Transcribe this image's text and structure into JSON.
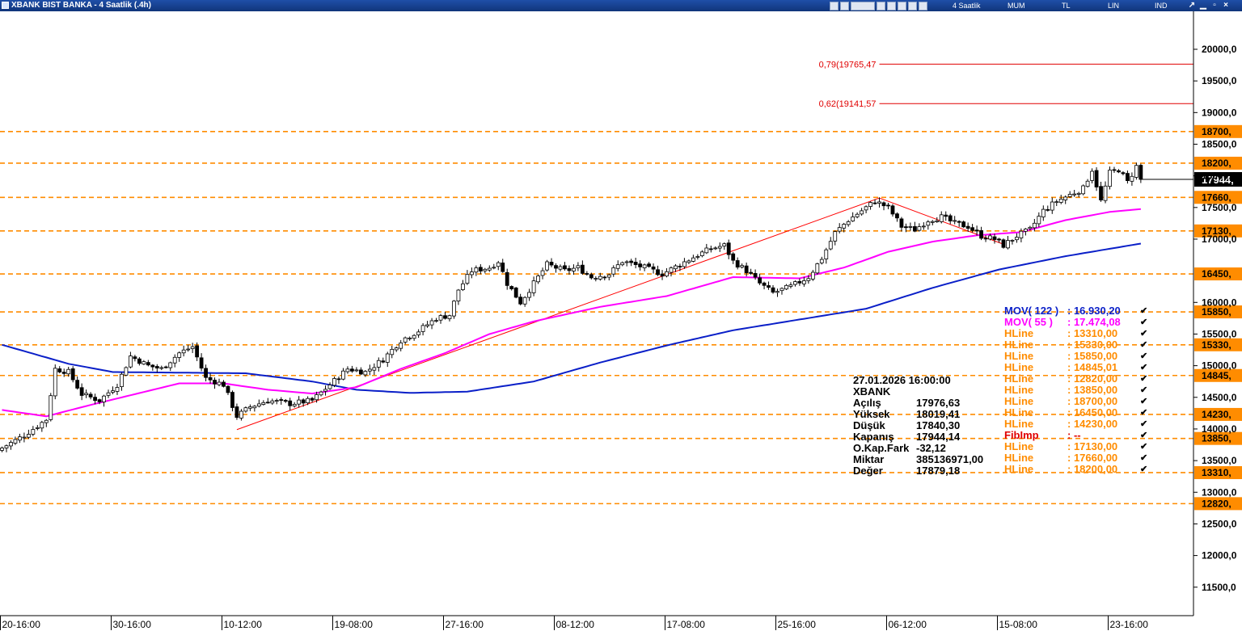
{
  "window": {
    "title": "XBANK BIST BANKA - 4 Saatlik (.4h)",
    "toolbar_labels": [
      "4 Saatlik",
      "MUM",
      "TL",
      "LIN",
      "IND"
    ]
  },
  "colors": {
    "up_candle": "#ffffff",
    "down_candle": "#000000",
    "mov122": "#0a1fc8",
    "mov55": "#ff00ff",
    "hline": "#ff8c00",
    "fib": "#e00000",
    "trend": "#ff0000"
  },
  "chart_data": {
    "type": "candlestick",
    "symbol": "XBANK",
    "ylim": [
      11050,
      20600
    ],
    "y_ticks": [
      "20000,0",
      "19500,0",
      "19000,0",
      "18500,0",
      "18000,0",
      "17500,0",
      "17000,0",
      "16000,0",
      "15500,0",
      "15000,0",
      "14500,0",
      "14000,0",
      "13500,0",
      "13000,0",
      "12500,0",
      "12000,0",
      "11500,0"
    ],
    "y_tick_values": [
      20000,
      19500,
      19000,
      18500,
      18000,
      17500,
      17000,
      16000,
      15500,
      15000,
      14500,
      14000,
      13500,
      13000,
      12500,
      12000,
      11500
    ],
    "x_ticks": [
      {
        "label": "20-16:00",
        "bar": 0
      },
      {
        "label": "30-16:00",
        "bar": 25
      },
      {
        "label": "10-12:00",
        "bar": 50
      },
      {
        "label": "19-08:00",
        "bar": 75
      },
      {
        "label": "27-16:00",
        "bar": 100
      },
      {
        "label": "08-12:00",
        "bar": 125
      },
      {
        "label": "17-08:00",
        "bar": 150
      },
      {
        "label": "25-16:00",
        "bar": 175
      },
      {
        "label": "06-12:00",
        "bar": 200
      },
      {
        "label": "15-08:00",
        "bar": 225
      },
      {
        "label": "23-16:00",
        "bar": 250
      }
    ],
    "bar_count": 258,
    "hlines": [
      {
        "value": 18700,
        "label": "18700,"
      },
      {
        "value": 18200,
        "label": "18200,"
      },
      {
        "value": 17660,
        "label": "17660,"
      },
      {
        "value": 17130,
        "label": "17130,"
      },
      {
        "value": 16450,
        "label": "16450,"
      },
      {
        "value": 15850,
        "label": "15850,"
      },
      {
        "value": 15330,
        "label": "15330,"
      },
      {
        "value": 14845,
        "label": "14845,"
      },
      {
        "value": 14230,
        "label": "14230,"
      },
      {
        "value": 13850,
        "label": "13850,"
      },
      {
        "value": 13310,
        "label": "13310,"
      },
      {
        "value": 12820,
        "label": "12820,"
      }
    ],
    "fib_levels": [
      {
        "value": 19765.47,
        "label": "0,79(19765,47",
        "start_bar": 198
      },
      {
        "value": 19141.57,
        "label": "0,62(19141,57",
        "start_bar": 198
      }
    ],
    "trend_lines": [
      {
        "from_bar": 53,
        "from_value": 13990,
        "to_bar": 198,
        "to_value": 17650
      },
      {
        "from_bar": 198,
        "from_value": 17650,
        "to_bar": 226,
        "to_value": 16920
      }
    ],
    "last_price": {
      "value": 17944.14,
      "label": "17944,"
    },
    "anchors": [
      {
        "bar": 0,
        "value": 13700
      },
      {
        "bar": 5,
        "value": 13900
      },
      {
        "bar": 10,
        "value": 14150
      },
      {
        "bar": 12,
        "value": 14950
      },
      {
        "bar": 15,
        "value": 14900
      },
      {
        "bar": 18,
        "value": 14550
      },
      {
        "bar": 22,
        "value": 14450
      },
      {
        "bar": 26,
        "value": 14700
      },
      {
        "bar": 29,
        "value": 15150
      },
      {
        "bar": 33,
        "value": 15000
      },
      {
        "bar": 36,
        "value": 14950
      },
      {
        "bar": 40,
        "value": 15200
      },
      {
        "bar": 43,
        "value": 15300
      },
      {
        "bar": 46,
        "value": 14800
      },
      {
        "bar": 50,
        "value": 14700
      },
      {
        "bar": 53,
        "value": 14200
      },
      {
        "bar": 56,
        "value": 14350
      },
      {
        "bar": 60,
        "value": 14450
      },
      {
        "bar": 65,
        "value": 14400
      },
      {
        "bar": 70,
        "value": 14450
      },
      {
        "bar": 74,
        "value": 14700
      },
      {
        "bar": 78,
        "value": 14950
      },
      {
        "bar": 82,
        "value": 14900
      },
      {
        "bar": 86,
        "value": 15100
      },
      {
        "bar": 90,
        "value": 15400
      },
      {
        "bar": 94,
        "value": 15550
      },
      {
        "bar": 98,
        "value": 15750
      },
      {
        "bar": 101,
        "value": 15800
      },
      {
        "bar": 103,
        "value": 16200
      },
      {
        "bar": 106,
        "value": 16500
      },
      {
        "bar": 110,
        "value": 16550
      },
      {
        "bar": 112,
        "value": 16650
      },
      {
        "bar": 114,
        "value": 16300
      },
      {
        "bar": 117,
        "value": 16000
      },
      {
        "bar": 120,
        "value": 16300
      },
      {
        "bar": 123,
        "value": 16600
      },
      {
        "bar": 127,
        "value": 16500
      },
      {
        "bar": 130,
        "value": 16550
      },
      {
        "bar": 133,
        "value": 16400
      },
      {
        "bar": 137,
        "value": 16450
      },
      {
        "bar": 140,
        "value": 16650
      },
      {
        "bar": 145,
        "value": 16550
      },
      {
        "bar": 149,
        "value": 16450
      },
      {
        "bar": 153,
        "value": 16600
      },
      {
        "bar": 157,
        "value": 16750
      },
      {
        "bar": 160,
        "value": 16850
      },
      {
        "bar": 163,
        "value": 16900
      },
      {
        "bar": 165,
        "value": 16650
      },
      {
        "bar": 168,
        "value": 16500
      },
      {
        "bar": 171,
        "value": 16300
      },
      {
        "bar": 174,
        "value": 16150
      },
      {
        "bar": 178,
        "value": 16250
      },
      {
        "bar": 182,
        "value": 16400
      },
      {
        "bar": 185,
        "value": 16700
      },
      {
        "bar": 188,
        "value": 17100
      },
      {
        "bar": 191,
        "value": 17300
      },
      {
        "bar": 194,
        "value": 17450
      },
      {
        "bar": 197,
        "value": 17600
      },
      {
        "bar": 200,
        "value": 17500
      },
      {
        "bar": 203,
        "value": 17200
      },
      {
        "bar": 206,
        "value": 17150
      },
      {
        "bar": 209,
        "value": 17300
      },
      {
        "bar": 212,
        "value": 17350
      },
      {
        "bar": 215,
        "value": 17250
      },
      {
        "bar": 218,
        "value": 17200
      },
      {
        "bar": 221,
        "value": 17050
      },
      {
        "bar": 224,
        "value": 17000
      },
      {
        "bar": 226,
        "value": 16900
      },
      {
        "bar": 229,
        "value": 17050
      },
      {
        "bar": 232,
        "value": 17150
      },
      {
        "bar": 235,
        "value": 17450
      },
      {
        "bar": 238,
        "value": 17600
      },
      {
        "bar": 241,
        "value": 17700
      },
      {
        "bar": 244,
        "value": 17800
      },
      {
        "bar": 246,
        "value": 18100
      },
      {
        "bar": 248,
        "value": 17600
      },
      {
        "bar": 250,
        "value": 18050
      },
      {
        "bar": 252,
        "value": 18100
      },
      {
        "bar": 254,
        "value": 17900
      },
      {
        "bar": 256,
        "value": 18150
      },
      {
        "bar": 257,
        "value": 17944
      }
    ],
    "mov122_points": [
      {
        "bar": 0,
        "value": 15330
      },
      {
        "bar": 15,
        "value": 15030
      },
      {
        "bar": 25,
        "value": 14900
      },
      {
        "bar": 40,
        "value": 14890
      },
      {
        "bar": 55,
        "value": 14880
      },
      {
        "bar": 70,
        "value": 14750
      },
      {
        "bar": 80,
        "value": 14620
      },
      {
        "bar": 92,
        "value": 14570
      },
      {
        "bar": 105,
        "value": 14590
      },
      {
        "bar": 120,
        "value": 14750
      },
      {
        "bar": 135,
        "value": 15050
      },
      {
        "bar": 150,
        "value": 15320
      },
      {
        "bar": 165,
        "value": 15560
      },
      {
        "bar": 180,
        "value": 15730
      },
      {
        "bar": 195,
        "value": 15900
      },
      {
        "bar": 210,
        "value": 16230
      },
      {
        "bar": 225,
        "value": 16520
      },
      {
        "bar": 240,
        "value": 16730
      },
      {
        "bar": 257,
        "value": 16930
      }
    ],
    "mov55_points": [
      {
        "bar": 0,
        "value": 14300
      },
      {
        "bar": 10,
        "value": 14200
      },
      {
        "bar": 20,
        "value": 14380
      },
      {
        "bar": 30,
        "value": 14550
      },
      {
        "bar": 40,
        "value": 14720
      },
      {
        "bar": 50,
        "value": 14720
      },
      {
        "bar": 60,
        "value": 14620
      },
      {
        "bar": 70,
        "value": 14560
      },
      {
        "bar": 80,
        "value": 14660
      },
      {
        "bar": 90,
        "value": 14950
      },
      {
        "bar": 100,
        "value": 15200
      },
      {
        "bar": 110,
        "value": 15500
      },
      {
        "bar": 120,
        "value": 15700
      },
      {
        "bar": 135,
        "value": 15930
      },
      {
        "bar": 150,
        "value": 16100
      },
      {
        "bar": 165,
        "value": 16400
      },
      {
        "bar": 180,
        "value": 16380
      },
      {
        "bar": 190,
        "value": 16550
      },
      {
        "bar": 200,
        "value": 16800
      },
      {
        "bar": 210,
        "value": 16960
      },
      {
        "bar": 220,
        "value": 17060
      },
      {
        "bar": 230,
        "value": 17110
      },
      {
        "bar": 240,
        "value": 17300
      },
      {
        "bar": 250,
        "value": 17430
      },
      {
        "bar": 257,
        "value": 17474
      }
    ]
  },
  "info_panel": {
    "date": "27.01.2026  16:00:00",
    "symbol": "XBANK",
    "rows": [
      {
        "key": "Açılış",
        "value": "17976,63"
      },
      {
        "key": "Yüksek",
        "value": "18019,41"
      },
      {
        "key": "Düşük",
        "value": "17840,30"
      },
      {
        "key": "Kapanış",
        "value": "17944,14"
      },
      {
        "key": "O.Kap.Fark",
        "value": "-32,12"
      },
      {
        "key": "Miktar",
        "value": "385136971,00"
      },
      {
        "key": "Değer",
        "value": "17879,18"
      }
    ]
  },
  "indicator_legend": [
    {
      "name": "MOV( 122 )",
      "value": ": 16.930,20",
      "color": "#0a1fc8"
    },
    {
      "name": "MOV( 55 )",
      "value": ": 17.474,08",
      "color": "#ff00ff"
    },
    {
      "name": "HLine",
      "value": ": 13310,00",
      "color": "#ff8c00"
    },
    {
      "name": "HLine",
      "value": ": 15330,00",
      "color": "#ff8c00"
    },
    {
      "name": "HLine",
      "value": ": 15850,00",
      "color": "#ff8c00"
    },
    {
      "name": "HLine",
      "value": ": 14845,01",
      "color": "#ff8c00"
    },
    {
      "name": "HLine",
      "value": ": 12820,00",
      "color": "#ff8c00"
    },
    {
      "name": "HLine",
      "value": ": 13850,00",
      "color": "#ff8c00"
    },
    {
      "name": "HLine",
      "value": ": 18700,00",
      "color": "#ff8c00"
    },
    {
      "name": "HLine",
      "value": ": 16450,00",
      "color": "#ff8c00"
    },
    {
      "name": "HLine",
      "value": ": 14230,00",
      "color": "#ff8c00"
    },
    {
      "name": "FibImp",
      "value": ": --",
      "color": "#e00000"
    },
    {
      "name": "HLine",
      "value": ": 17130,00",
      "color": "#ff8c00"
    },
    {
      "name": "HLine",
      "value": ": 17660,00",
      "color": "#ff8c00"
    },
    {
      "name": "HLine",
      "value": ": 18200,00",
      "color": "#ff8c00"
    }
  ]
}
